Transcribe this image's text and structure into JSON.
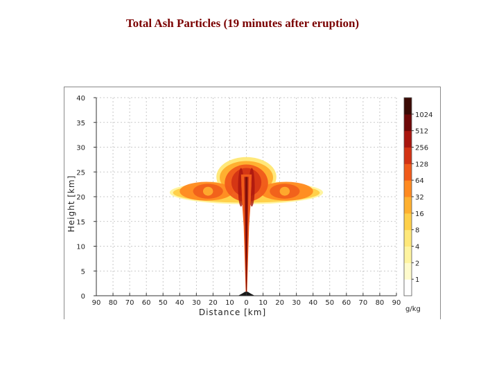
{
  "slide": {
    "title": "Total Ash Particles (19 minutes after eruption)"
  },
  "chart_data": {
    "type": "heatmap",
    "title": "Total Ash Particles (19 minutes after eruption)",
    "xlabel": "Distance [km]",
    "ylabel": "Height [km]",
    "x_ticks": [
      "90",
      "80",
      "70",
      "60",
      "50",
      "40",
      "30",
      "20",
      "10",
      "0",
      "10",
      "20",
      "30",
      "40",
      "50",
      "60",
      "70",
      "80",
      "90"
    ],
    "x_tick_values": [
      -90,
      -80,
      -70,
      -60,
      -50,
      -40,
      -30,
      -20,
      -10,
      0,
      10,
      20,
      30,
      40,
      50,
      60,
      70,
      80,
      90
    ],
    "y_ticks": [
      "0",
      "5",
      "10",
      "15",
      "20",
      "25",
      "30",
      "35",
      "40"
    ],
    "y_tick_values": [
      0,
      5,
      10,
      15,
      20,
      25,
      30,
      35,
      40
    ],
    "xlim": [
      -90,
      90
    ],
    "ylim": [
      0,
      40
    ],
    "grid": true,
    "colorbar": {
      "unit": "g/kg",
      "scale": "log2",
      "labels": [
        "1",
        "2",
        "4",
        "8",
        "16",
        "32",
        "64",
        "128",
        "256",
        "512",
        "1024"
      ],
      "colors": [
        "#ffffff",
        "#fffbcc",
        "#fff4a0",
        "#ffe87a",
        "#ffd04a",
        "#ffb030",
        "#ff8a20",
        "#f05a1a",
        "#d23214",
        "#a8150e",
        "#6e0808",
        "#3a0a05"
      ]
    },
    "plume_regions": [
      {
        "level": "2",
        "shape": "outer envelope",
        "x_range": [
          -46,
          46
        ],
        "y_range": [
          18.5,
          27.5
        ]
      },
      {
        "level": "8",
        "shape": "umbrella cloud",
        "x_range": [
          -42,
          42
        ],
        "y_range": [
          19,
          26.5
        ]
      },
      {
        "level": "32",
        "shape": "inner umbrella",
        "x_range": [
          -30,
          30
        ],
        "y_range": [
          19.5,
          26
        ]
      },
      {
        "level": "128",
        "shape": "core near vent axis",
        "x_range": [
          -12,
          12
        ],
        "y_range": [
          17,
          25.5
        ]
      },
      {
        "level": "512",
        "shape": "eruption column",
        "x_range": [
          -2,
          2
        ],
        "y_range": [
          0,
          25
        ]
      }
    ],
    "terrain": {
      "x_range": [
        -5,
        5
      ],
      "peak_height_km": 0.8
    }
  }
}
